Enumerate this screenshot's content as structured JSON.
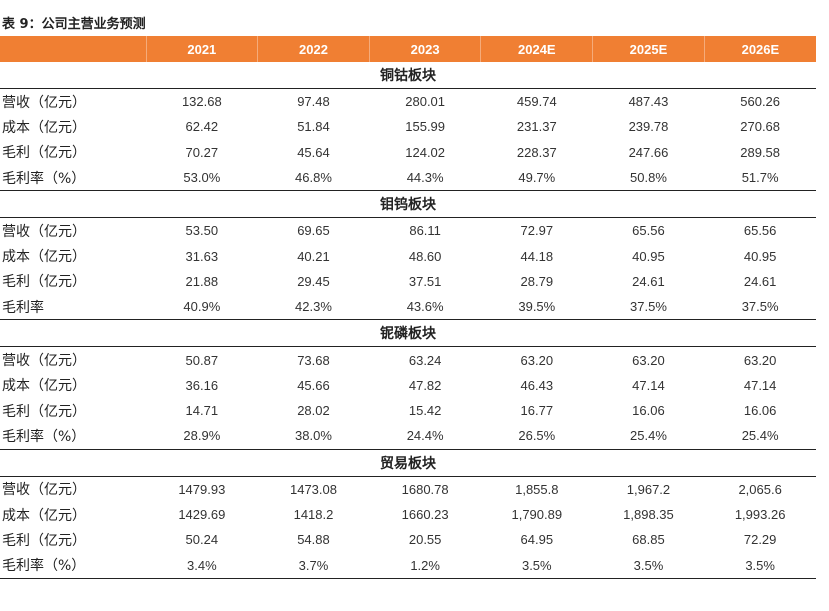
{
  "caption": "表 9：公司主营业务预测",
  "header": [
    "",
    "2021",
    "2022",
    "2023",
    "2024E",
    "2025E",
    "2026E"
  ],
  "sections": [
    {
      "title": "铜钴板块",
      "rows": [
        {
          "label": "营收（亿元）",
          "values": [
            "132.68",
            "97.48",
            "280.01",
            "459.74",
            "487.43",
            "560.26"
          ]
        },
        {
          "label": "成本（亿元）",
          "values": [
            "62.42",
            "51.84",
            "155.99",
            "231.37",
            "239.78",
            "270.68"
          ]
        },
        {
          "label": "毛利（亿元）",
          "values": [
            "70.27",
            "45.64",
            "124.02",
            "228.37",
            "247.66",
            "289.58"
          ]
        },
        {
          "label": "毛利率（%）",
          "values": [
            "53.0%",
            "46.8%",
            "44.3%",
            "49.7%",
            "50.8%",
            "51.7%"
          ]
        }
      ]
    },
    {
      "title": "钼钨板块",
      "rows": [
        {
          "label": "营收（亿元）",
          "values": [
            "53.50",
            "69.65",
            "86.11",
            "72.97",
            "65.56",
            "65.56"
          ]
        },
        {
          "label": "成本（亿元）",
          "values": [
            "31.63",
            "40.21",
            "48.60",
            "44.18",
            "40.95",
            "40.95"
          ]
        },
        {
          "label": "毛利（亿元）",
          "values": [
            "21.88",
            "29.45",
            "37.51",
            "28.79",
            "24.61",
            "24.61"
          ]
        },
        {
          "label": "毛利率",
          "values": [
            "40.9%",
            "42.3%",
            "43.6%",
            "39.5%",
            "37.5%",
            "37.5%"
          ]
        }
      ]
    },
    {
      "title": "铌磷板块",
      "rows": [
        {
          "label": "营收（亿元）",
          "values": [
            "50.87",
            "73.68",
            "63.24",
            "63.20",
            "63.20",
            "63.20"
          ]
        },
        {
          "label": "成本（亿元）",
          "values": [
            "36.16",
            "45.66",
            "47.82",
            "46.43",
            "47.14",
            "47.14"
          ]
        },
        {
          "label": "毛利（亿元）",
          "values": [
            "14.71",
            "28.02",
            "15.42",
            "16.77",
            "16.06",
            "16.06"
          ]
        },
        {
          "label": "毛利率（%）",
          "values": [
            "28.9%",
            "38.0%",
            "24.4%",
            "26.5%",
            "25.4%",
            "25.4%"
          ]
        }
      ]
    },
    {
      "title": "贸易板块",
      "rows": [
        {
          "label": "营收（亿元）",
          "values": [
            "1479.93",
            "1473.08",
            "1680.78",
            "1,855.8",
            "1,967.2",
            "2,065.6"
          ]
        },
        {
          "label": "成本（亿元）",
          "values": [
            "1429.69",
            "1418.2",
            "1660.23",
            "1,790.89",
            "1,898.35",
            "1,993.26"
          ]
        },
        {
          "label": "毛利（亿元）",
          "values": [
            "50.24",
            "54.88",
            "20.55",
            "64.95",
            "68.85",
            "72.29"
          ]
        },
        {
          "label": "毛利率（%）",
          "values": [
            "3.4%",
            "3.7%",
            "1.2%",
            "3.5%",
            "3.5%",
            "3.5%"
          ]
        }
      ]
    }
  ]
}
